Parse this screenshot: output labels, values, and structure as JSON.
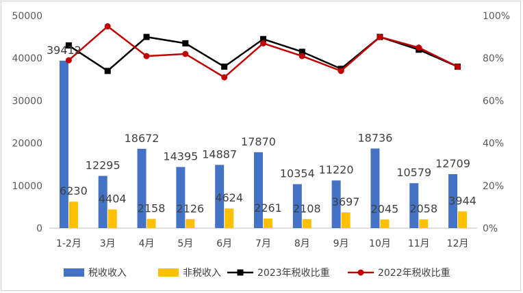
{
  "chart_data": {
    "type": "bar",
    "categories": [
      "1-2月",
      "3月",
      "4月",
      "5月",
      "6月",
      "7月",
      "8月",
      "9月",
      "10月",
      "11月",
      "12月"
    ],
    "series": [
      {
        "name": "税收收入",
        "kind": "bar",
        "axis": "left",
        "color": "#4472C4",
        "values": [
          39412,
          12295,
          18672,
          14395,
          14887,
          17870,
          10354,
          11220,
          18736,
          10579,
          12709
        ]
      },
      {
        "name": "非税收入",
        "kind": "bar",
        "axis": "left",
        "color": "#FFC000",
        "values": [
          6230,
          4404,
          2158,
          2126,
          4624,
          2261,
          2108,
          3697,
          2045,
          2058,
          3944
        ]
      },
      {
        "name": "2023年税收比重",
        "kind": "line",
        "axis": "right",
        "color": "#000000",
        "marker": "square",
        "values": [
          86,
          74,
          90,
          87,
          76,
          89,
          83,
          75,
          90,
          84,
          76
        ]
      },
      {
        "name": "2022年税收比重",
        "kind": "line",
        "axis": "right",
        "color": "#C00000",
        "marker": "circle",
        "values": [
          79,
          95,
          81,
          82,
          71,
          87,
          81,
          74,
          90,
          85,
          76
        ]
      }
    ],
    "y_left": {
      "min": 0,
      "max": 50000,
      "ticks": [
        "0",
        "10000",
        "20000",
        "30000",
        "40000",
        "50000"
      ]
    },
    "y_right": {
      "min": 0,
      "max": 100,
      "ticks": [
        "0%",
        "20%",
        "40%",
        "60%",
        "80%",
        "100%"
      ]
    },
    "grid": false,
    "legend": "bottom"
  }
}
